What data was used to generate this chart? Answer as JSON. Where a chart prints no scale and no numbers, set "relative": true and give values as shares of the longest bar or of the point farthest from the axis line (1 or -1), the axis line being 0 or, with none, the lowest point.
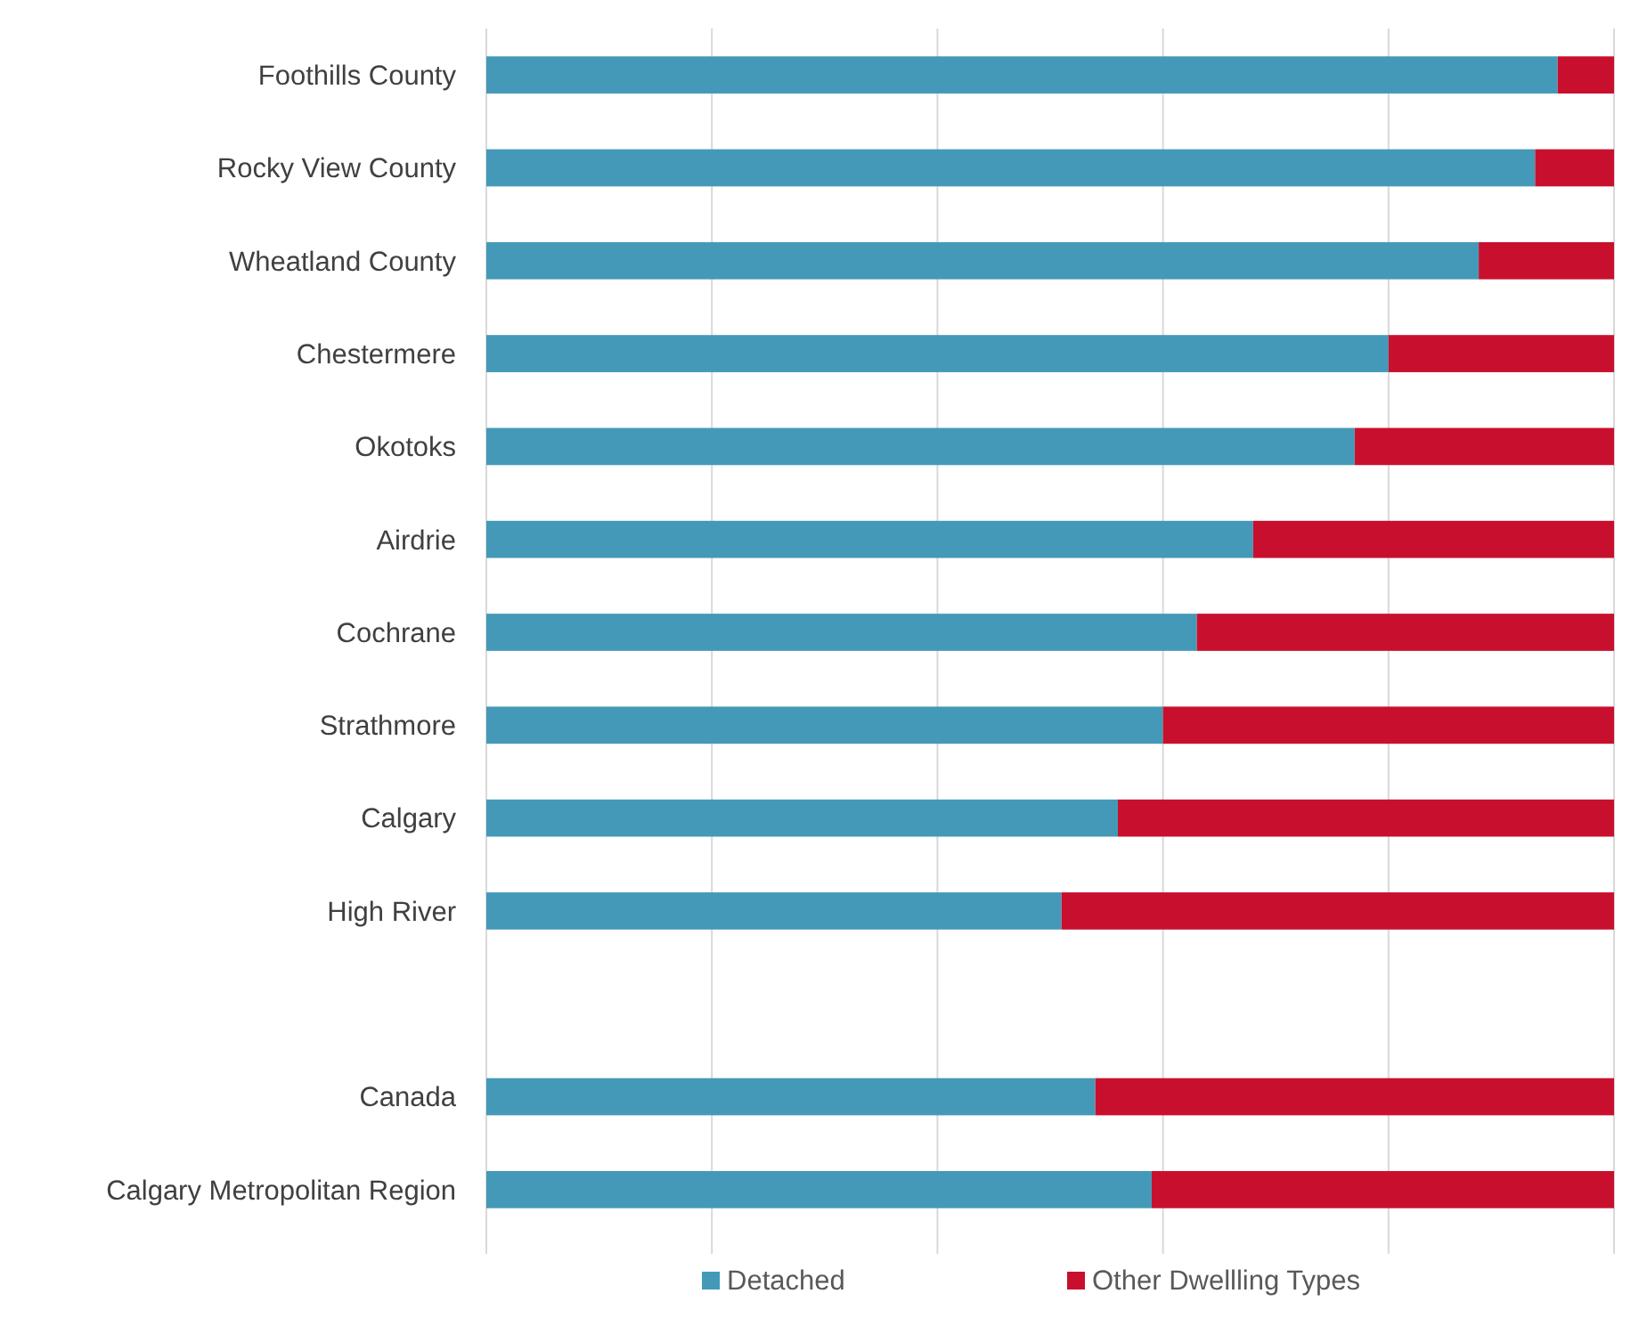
{
  "chart_data": {
    "type": "bar",
    "orientation": "horizontal",
    "stacked": true,
    "relative": true,
    "grid": "x",
    "legend": "bottom",
    "tick_labels": "y",
    "categories": [
      "Foothills County",
      "Rocky View County",
      "Wheatland County",
      "Chestermere",
      "Okotoks",
      "Airdrie",
      "Cochrane",
      "Strathmore",
      "Calgary",
      "High River",
      null,
      "Canada",
      "Calgary Metropolitan Region"
    ],
    "series": [
      {
        "name": "Detached",
        "color": "#4499b8",
        "values": [
          0.95,
          0.93,
          0.88,
          0.8,
          0.77,
          0.68,
          0.63,
          0.6,
          0.56,
          0.51,
          null,
          0.54,
          0.59
        ]
      },
      {
        "name": "Other Dwellling Types",
        "color": "#c8102e",
        "values": [
          0.05,
          0.07,
          0.12,
          0.2,
          0.23,
          0.32,
          0.37,
          0.4,
          0.44,
          0.49,
          null,
          0.46,
          0.41
        ]
      }
    ]
  }
}
